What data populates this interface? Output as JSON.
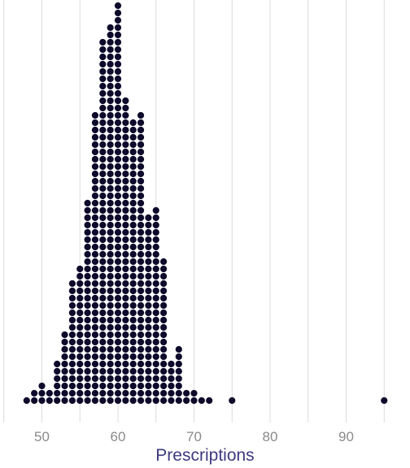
{
  "chart_data": {
    "type": "dotplot",
    "title": "",
    "xlabel": "Prescriptions",
    "ylabel": "",
    "xlim": [
      47,
      96
    ],
    "xticks": [
      50,
      60,
      70,
      80,
      90
    ],
    "grid": "vertical",
    "dot_color": "#0d0a2b",
    "points": [
      {
        "x": 48,
        "count": 1
      },
      {
        "x": 49,
        "count": 2
      },
      {
        "x": 50,
        "count": 3
      },
      {
        "x": 51,
        "count": 2
      },
      {
        "x": 52,
        "count": 6
      },
      {
        "x": 53,
        "count": 10
      },
      {
        "x": 54,
        "count": 17
      },
      {
        "x": 55,
        "count": 19
      },
      {
        "x": 56,
        "count": 28
      },
      {
        "x": 57,
        "count": 40
      },
      {
        "x": 58,
        "count": 50
      },
      {
        "x": 59,
        "count": 52
      },
      {
        "x": 60,
        "count": 55
      },
      {
        "x": 61,
        "count": 42
      },
      {
        "x": 62,
        "count": 39
      },
      {
        "x": 63,
        "count": 40
      },
      {
        "x": 64,
        "count": 26
      },
      {
        "x": 65,
        "count": 27
      },
      {
        "x": 66,
        "count": 20
      },
      {
        "x": 67,
        "count": 6
      },
      {
        "x": 68,
        "count": 8
      },
      {
        "x": 69,
        "count": 2
      },
      {
        "x": 70,
        "count": 2
      },
      {
        "x": 71,
        "count": 1
      },
      {
        "x": 72,
        "count": 1
      },
      {
        "x": 75,
        "count": 1
      },
      {
        "x": 95,
        "count": 1
      }
    ]
  }
}
